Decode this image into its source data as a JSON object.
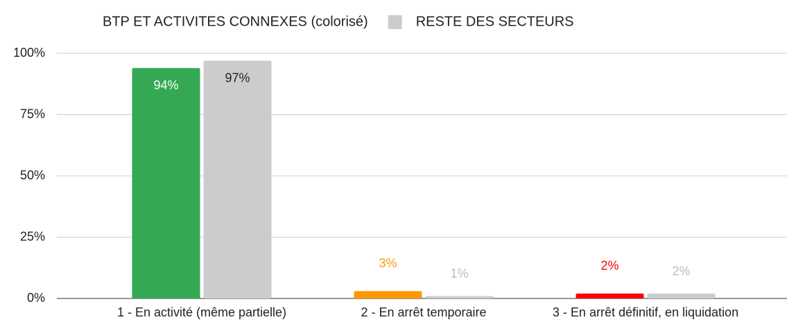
{
  "chart_data": {
    "type": "bar",
    "categories": [
      "1 - En activité (même partielle)",
      "2 - En arrêt temporaire",
      "3 - En arrêt définitif, en liquidation"
    ],
    "series": [
      {
        "name": "BTP ET ACTIVITES CONNEXES (colorisé)",
        "colors": [
          "#34a853",
          "#ff9900",
          "#ff0000"
        ],
        "values": [
          94,
          3,
          2
        ],
        "value_labels": [
          "94%",
          "3%",
          "2%"
        ]
      },
      {
        "name": "RESTE DES SECTEURS",
        "color": "#cccccc",
        "values": [
          97,
          1,
          2
        ],
        "value_labels": [
          "97%",
          "1%",
          "2%"
        ]
      }
    ],
    "ylim": [
      0,
      100
    ],
    "yticks": [
      {
        "value": 0,
        "label": "0%"
      },
      {
        "value": 25,
        "label": "25%"
      },
      {
        "value": 50,
        "label": "50%"
      },
      {
        "value": 75,
        "label": "75%"
      },
      {
        "value": 100,
        "label": "100%"
      }
    ],
    "grid": true,
    "legend": "top"
  }
}
